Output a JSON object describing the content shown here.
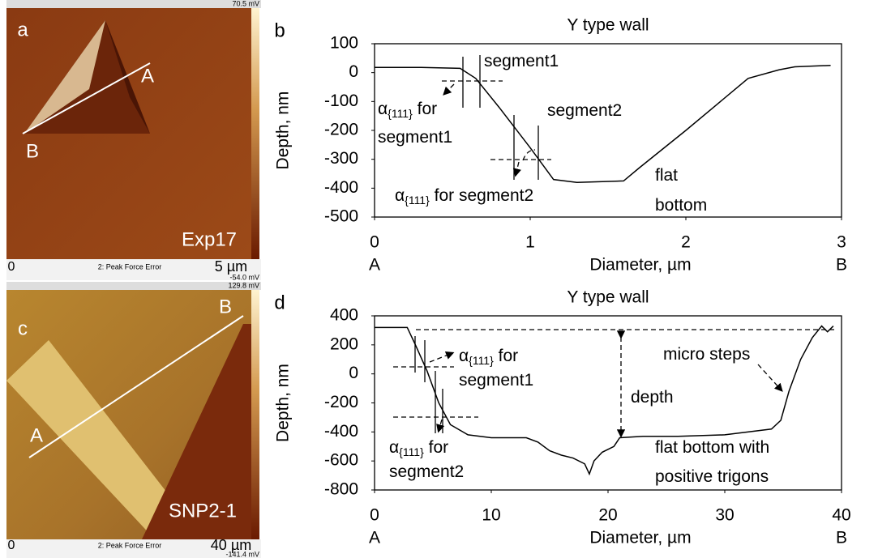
{
  "panels": [
    {
      "letter": "a",
      "sample": "Exp17",
      "point_a": "A",
      "point_b": "B",
      "origin": "0",
      "channel": "2: Peak Force Error",
      "scale": "5 µm",
      "max": "70.5 mV",
      "min": "-54.0 mV"
    },
    {
      "letter": "c",
      "sample": "SNP2-1",
      "point_a": "A",
      "point_b": "B",
      "origin": "0",
      "channel": "2: Peak Force Error",
      "scale": "40 µm",
      "max": "129.8 mV",
      "min": "-141.4 mV"
    }
  ],
  "chart_data": [
    {
      "type": "line",
      "letter": "b",
      "title": "Y type wall",
      "x_label": "Diameter, µm",
      "y_label": "Depth, nm",
      "x_start": "A",
      "x_end": "B",
      "xlim": [
        0,
        3
      ],
      "xticks": [
        0,
        1,
        2,
        3
      ],
      "ylim": [
        -500,
        100
      ],
      "yticks": [
        100,
        0,
        -100,
        -200,
        -300,
        -400,
        -500
      ],
      "series": [
        {
          "color": "#000000",
          "x": [
            0,
            0.3,
            0.55,
            0.65,
            0.8,
            1.0,
            1.15,
            1.3,
            1.6,
            1.7,
            2.0,
            2.2,
            2.4,
            2.6,
            2.7,
            2.93
          ],
          "values": [
            18,
            18,
            15,
            -20,
            -120,
            -260,
            -370,
            -380,
            -375,
            -330,
            -200,
            -110,
            -20,
            10,
            20,
            25
          ]
        }
      ],
      "annotations": [
        {
          "text": "segment1"
        },
        {
          "text": "segment2"
        },
        {
          "prefix": "α",
          "sub": "{111}",
          "text": " for"
        },
        {
          "text": "segment1"
        },
        {
          "prefix": "α",
          "sub": "{111}",
          "text": " for segment2"
        },
        {
          "text": "flat"
        },
        {
          "text": "bottom"
        }
      ]
    },
    {
      "type": "line",
      "letter": "d",
      "title": "Y type wall",
      "x_label": "Diameter, µm",
      "y_label": "Depth, nm",
      "x_start": "A",
      "x_end": "B",
      "xlim": [
        0,
        40
      ],
      "xticks": [
        0,
        10,
        20,
        30,
        40
      ],
      "ylim": [
        -800,
        400
      ],
      "yticks": [
        400,
        200,
        0,
        -200,
        -400,
        -600,
        -800
      ],
      "series": [
        {
          "color": "#000000",
          "x": [
            0,
            2.8,
            3.5,
            4.5,
            5.5,
            6.5,
            8,
            10,
            13,
            14,
            15,
            16,
            17,
            18,
            18.4,
            18.8,
            19.5,
            20.5,
            21,
            23,
            26,
            30,
            34,
            34.8,
            35.5,
            36.5,
            37.5,
            38.3,
            38.8,
            39.3
          ],
          "values": [
            320,
            320,
            200,
            20,
            -200,
            -350,
            -420,
            -440,
            -440,
            -470,
            -530,
            -560,
            -580,
            -620,
            -690,
            -600,
            -540,
            -500,
            -440,
            -430,
            -430,
            -420,
            -380,
            -320,
            -120,
            100,
            250,
            330,
            290,
            330
          ]
        }
      ],
      "annotations": [
        {
          "prefix": "α",
          "sub": "{111}",
          "text": " for"
        },
        {
          "text": "segment1"
        },
        {
          "prefix": "α",
          "sub": "{111}",
          "text": " for"
        },
        {
          "text": "segment2"
        },
        {
          "text": "depth"
        },
        {
          "text": "micro steps"
        },
        {
          "text": "flat bottom with"
        },
        {
          "text": "positive trigons"
        }
      ]
    }
  ]
}
